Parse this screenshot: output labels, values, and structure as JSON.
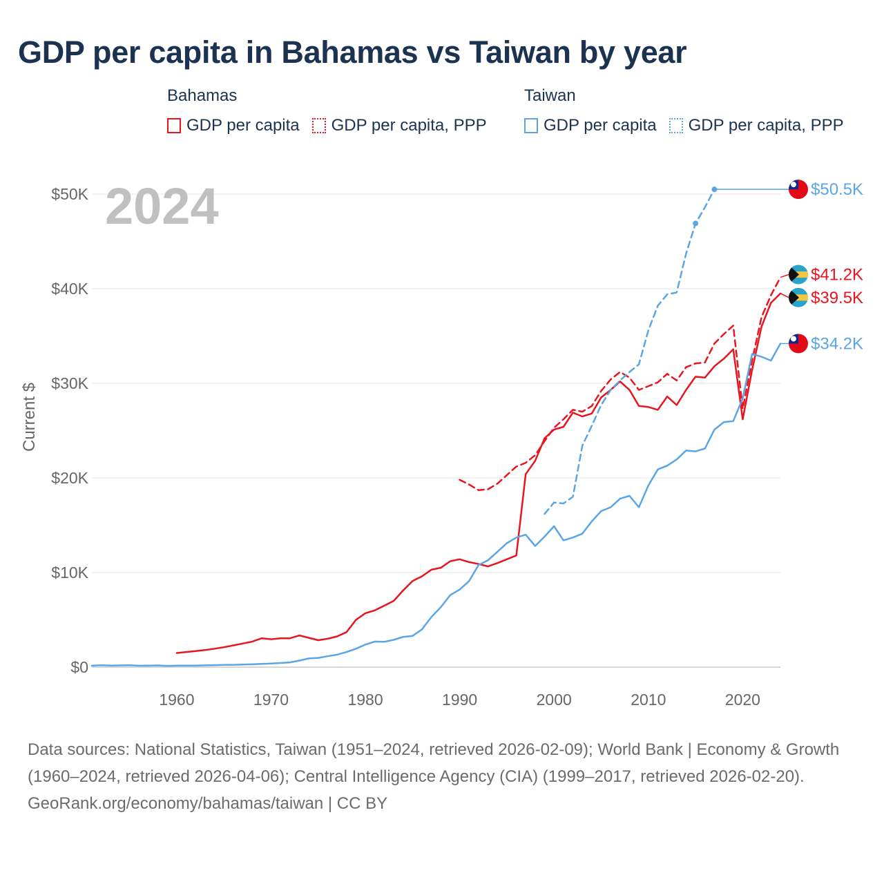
{
  "title": "GDP per capita in Bahamas vs Taiwan by year",
  "legend": {
    "groups": [
      {
        "name": "Bahamas",
        "items": [
          "GDP per capita",
          "GDP per capita, PPP"
        ],
        "color": "#e8141e"
      },
      {
        "name": "Taiwan",
        "items": [
          "GDP per capita",
          "GDP per capita, PPP"
        ],
        "color": "#5aa5e6"
      }
    ]
  },
  "footer": {
    "sources": "Data sources: National Statistics, Taiwan (1951–2024, retrieved 2026-02-09); World Bank | Economy & Growth (1960–2024, retrieved 2026-04-06); Central Intelligence Agency (CIA) (1999–2017, retrieved 2026-02-20).",
    "credit": "GeoRank.org/economy/bahamas/taiwan | CC BY"
  },
  "chart_data": {
    "type": "line",
    "title": "GDP per capita in Bahamas vs Taiwan by year",
    "year_label": "2024",
    "ylabel": "Current $",
    "xlabel": "",
    "xlim": [
      1951,
      2024
    ],
    "ylim": [
      0,
      50500
    ],
    "x_ticks": [
      1960,
      1970,
      1980,
      1990,
      2000,
      2010,
      2020
    ],
    "y_ticks": [
      0,
      10000,
      20000,
      30000,
      40000,
      50000
    ],
    "y_tick_labels": [
      "$0",
      "$10K",
      "$20K",
      "$30K",
      "$40K",
      "$50K"
    ],
    "grid": true,
    "series": [
      {
        "name": "Bahamas GDP per capita",
        "country": "Bahamas",
        "color": "#e8141e",
        "dash": "solid",
        "end_label": "$39.5K",
        "flag_icon": "bahamas-flag-icon",
        "x": [
          1960,
          1961,
          1962,
          1963,
          1964,
          1965,
          1966,
          1967,
          1968,
          1969,
          1970,
          1971,
          1972,
          1973,
          1974,
          1975,
          1976,
          1977,
          1978,
          1979,
          1980,
          1981,
          1982,
          1983,
          1984,
          1985,
          1986,
          1987,
          1988,
          1989,
          1990,
          1991,
          1992,
          1993,
          1994,
          1995,
          1996,
          1997,
          1998,
          1999,
          2000,
          2001,
          2002,
          2003,
          2004,
          2005,
          2006,
          2007,
          2008,
          2009,
          2010,
          2011,
          2012,
          2013,
          2014,
          2015,
          2016,
          2017,
          2018,
          2019,
          2020,
          2021,
          2022,
          2023,
          2024
        ],
        "y": [
          1500,
          1600,
          1700,
          1800,
          1950,
          2100,
          2300,
          2500,
          2700,
          3050,
          2950,
          3050,
          3050,
          3350,
          3100,
          2850,
          3000,
          3250,
          3700,
          5000,
          5700,
          6000,
          6500,
          7000,
          8100,
          9100,
          9600,
          10300,
          10500,
          11200,
          11400,
          11100,
          10900,
          10650,
          11000,
          11400,
          11800,
          20400,
          21800,
          24200,
          25100,
          25400,
          26900,
          26500,
          26800,
          28500,
          29300,
          30200,
          29300,
          27600,
          27500,
          27200,
          28600,
          27700,
          29300,
          30700,
          30600,
          31800,
          32600,
          33600,
          26200,
          31400,
          36000,
          38500,
          39500
        ]
      },
      {
        "name": "Bahamas GDP per capita, PPP",
        "country": "Bahamas",
        "color": "#e8141e",
        "dash": "dashed",
        "end_label": "$41.2K",
        "flag_icon": "bahamas-flag-icon",
        "x": [
          1990,
          1991,
          1992,
          1993,
          1994,
          1995,
          1996,
          1997,
          1998,
          1999,
          2000,
          2001,
          2002,
          2003,
          2004,
          2005,
          2006,
          2007,
          2008,
          2009,
          2010,
          2011,
          2012,
          2013,
          2014,
          2015,
          2016,
          2017,
          2018,
          2019,
          2020,
          2021,
          2022,
          2023,
          2024
        ],
        "y": [
          19800,
          19300,
          18700,
          18800,
          19400,
          20300,
          21200,
          21600,
          22400,
          23900,
          25300,
          26200,
          27200,
          27000,
          27600,
          29200,
          30400,
          31200,
          30600,
          29300,
          29700,
          30100,
          31000,
          30300,
          31700,
          32100,
          32200,
          34200,
          35200,
          36100,
          27300,
          32400,
          37000,
          39300,
          41200
        ]
      },
      {
        "name": "Taiwan GDP per capita",
        "country": "Taiwan",
        "color": "#5aa5e6",
        "dash": "solid",
        "end_label": "$34.2K",
        "flag_icon": "taiwan-flag-icon",
        "x": [
          1951,
          1952,
          1953,
          1954,
          1955,
          1956,
          1957,
          1958,
          1959,
          1960,
          1961,
          1962,
          1963,
          1964,
          1965,
          1966,
          1967,
          1968,
          1969,
          1970,
          1971,
          1972,
          1973,
          1974,
          1975,
          1976,
          1977,
          1978,
          1979,
          1980,
          1981,
          1982,
          1983,
          1984,
          1985,
          1986,
          1987,
          1988,
          1989,
          1990,
          1991,
          1992,
          1993,
          1994,
          1995,
          1996,
          1997,
          1998,
          1999,
          2000,
          2001,
          2002,
          2003,
          2004,
          2005,
          2006,
          2007,
          2008,
          2009,
          2010,
          2011,
          2012,
          2013,
          2014,
          2015,
          2016,
          2017,
          2018,
          2019,
          2020,
          2021,
          2022,
          2023,
          2024
        ],
        "y": [
          150,
          200,
          170,
          180,
          200,
          150,
          170,
          180,
          140,
          160,
          160,
          170,
          190,
          210,
          230,
          250,
          270,
          300,
          340,
          390,
          440,
          500,
          690,
          920,
          980,
          1150,
          1320,
          1600,
          1950,
          2390,
          2700,
          2680,
          2880,
          3200,
          3300,
          3990,
          5300,
          6340,
          7620,
          8200,
          9100,
          10800,
          11300,
          12200,
          13100,
          13700,
          14000,
          12800,
          13800,
          14900,
          13400,
          13700,
          14100,
          15400,
          16500,
          16900,
          17800,
          18100,
          16900,
          19200,
          20900,
          21300,
          21950,
          22900,
          22800,
          23100,
          25100,
          25900,
          26000,
          28400,
          33100,
          32800,
          32400,
          34200
        ]
      },
      {
        "name": "Taiwan GDP per capita, PPP",
        "country": "Taiwan",
        "color": "#5aa5e6",
        "dash": "dashed",
        "end_label": "$50.5K",
        "flag_icon": "taiwan-flag-icon",
        "x": [
          1999,
          2000,
          2001,
          2002,
          2003,
          2004,
          2005,
          2006,
          2007,
          2008,
          2009,
          2010,
          2011,
          2012,
          2013,
          2014,
          2015,
          2016,
          2017
        ],
        "y": [
          16200,
          17400,
          17300,
          18000,
          23400,
          25500,
          27700,
          29300,
          30300,
          31200,
          32000,
          35600,
          38200,
          39400,
          39600,
          43700,
          46900,
          48600,
          50500
        ],
        "markers": [
          2015,
          2017
        ],
        "extend_to": 2024
      }
    ]
  }
}
